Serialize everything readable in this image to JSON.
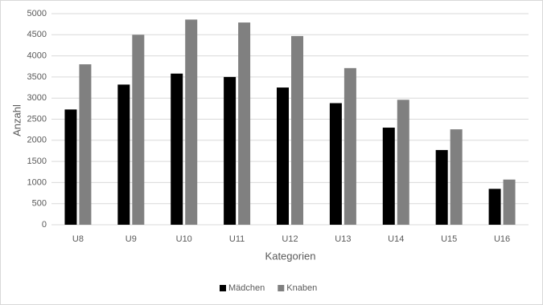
{
  "chart_data": {
    "type": "bar",
    "categories": [
      "U8",
      "U9",
      "U10",
      "U11",
      "U12",
      "U13",
      "U14",
      "U15",
      "U16"
    ],
    "series": [
      {
        "name": "Mädchen",
        "color": "#000000",
        "values": [
          2730,
          3320,
          3580,
          3500,
          3250,
          2880,
          2300,
          1770,
          850
        ]
      },
      {
        "name": "Knaben",
        "color": "#808080",
        "values": [
          3800,
          4500,
          4860,
          4790,
          4470,
          3710,
          2960,
          2260,
          1070
        ]
      }
    ],
    "x_label": "Kategorien",
    "y_label": "Anzahl",
    "ylim": [
      0,
      5000
    ],
    "yticks": [
      0,
      500,
      1000,
      1500,
      2000,
      2500,
      3000,
      3500,
      4000,
      4500,
      5000
    ],
    "grid": true,
    "legend": "bottom"
  }
}
